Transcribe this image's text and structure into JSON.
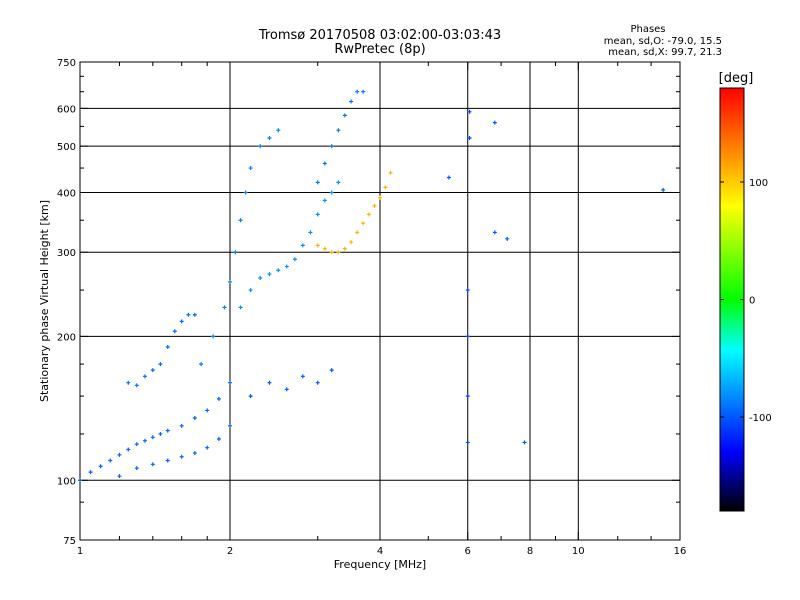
{
  "chart_data": {
    "type": "scatter",
    "title": "Tromsø 20170508 03:02:00-03:03:43",
    "subtitle": "RwPretec (8p)",
    "xlabel": "Frequency [MHz]",
    "ylabel": "Stationary phase Virtual Height [km]",
    "x_scale": "log",
    "y_scale": "log",
    "xlim": [
      1,
      16
    ],
    "ylim": [
      75,
      750
    ],
    "x_ticks": [
      1,
      2,
      4,
      6,
      8,
      10,
      16
    ],
    "x_tick_labels": [
      "1",
      "2",
      "4",
      "6",
      "8",
      "10",
      "16"
    ],
    "x_minor_ticks": [
      1.2,
      1.4,
      1.6,
      1.8,
      3,
      5,
      7,
      9,
      12,
      14
    ],
    "y_ticks": [
      75,
      100,
      200,
      300,
      400,
      500,
      600,
      750
    ],
    "y_tick_labels": [
      "75",
      "100",
      "200",
      "300",
      "400",
      "500",
      "600",
      "750"
    ],
    "y_minor_ticks": [
      90,
      125,
      150,
      175,
      250,
      350,
      450,
      550,
      650,
      700
    ],
    "grid_x": [
      2,
      4,
      6,
      8,
      10
    ],
    "grid_y": [
      100,
      200,
      300,
      400,
      500,
      600
    ],
    "legend": {
      "title": "Phases",
      "line1": "mean, sd,O: -79.0, 15.5",
      "line2": "mean, sd,X:  99.7, 21.3",
      "placement": "top-right"
    },
    "colorbar": {
      "label": "[deg]",
      "range": [
        -180,
        180
      ],
      "ticks": [
        100,
        0,
        -100
      ],
      "tick_labels": [
        "100",
        "0",
        "-100"
      ],
      "colors": [
        "#ff0000",
        "#ff8000",
        "#ffff00",
        "#00ff00",
        "#00ffff",
        "#0080ff",
        "#0000ff",
        "#000000"
      ]
    },
    "series": [
      {
        "trace": "O-lower",
        "phase_deg": -95,
        "x": [
          1.0,
          1.05,
          1.1,
          1.15,
          1.2,
          1.25,
          1.3,
          1.35,
          1.4,
          1.45,
          1.5,
          1.6,
          1.7,
          1.8,
          1.9,
          2.0
        ],
        "y": [
          100,
          104,
          107,
          110,
          113,
          116,
          119,
          121,
          123,
          125,
          127,
          130,
          135,
          140,
          148,
          160
        ]
      },
      {
        "trace": "O-lower-inner",
        "phase_deg": -95,
        "x": [
          1.2,
          1.3,
          1.4,
          1.5,
          1.6,
          1.7,
          1.8,
          1.9,
          2.0
        ],
        "y": [
          102,
          106,
          108,
          110,
          112,
          114,
          117,
          122,
          130
        ]
      },
      {
        "trace": "O-E-cusp",
        "phase_deg": -92,
        "x": [
          1.25,
          1.3,
          1.35,
          1.4,
          1.45,
          1.5,
          1.55,
          1.6,
          1.65,
          1.7
        ],
        "y": [
          160,
          158,
          165,
          170,
          175,
          190,
          205,
          215,
          222,
          222
        ]
      },
      {
        "trace": "O-F-rise",
        "phase_deg": -85,
        "x": [
          1.75,
          1.85,
          1.95,
          2.0,
          2.05,
          2.1,
          2.15,
          2.2,
          2.3,
          2.4,
          2.5
        ],
        "y": [
          175,
          200,
          230,
          260,
          300,
          350,
          400,
          450,
          500,
          520,
          540
        ]
      },
      {
        "trace": "O-F-main",
        "phase_deg": -80,
        "x": [
          2.1,
          2.2,
          2.3,
          2.4,
          2.5,
          2.6,
          2.7,
          2.8,
          2.9,
          3.0,
          3.1,
          3.2,
          3.3
        ],
        "y": [
          230,
          250,
          265,
          270,
          275,
          280,
          290,
          310,
          330,
          360,
          385,
          400,
          420
        ]
      },
      {
        "trace": "O-F-upper",
        "phase_deg": -88,
        "x": [
          3.0,
          3.1,
          3.2,
          3.3,
          3.4,
          3.5,
          3.6,
          3.7
        ],
        "y": [
          420,
          460,
          500,
          540,
          580,
          620,
          650,
          650
        ]
      },
      {
        "trace": "O-spread-low",
        "phase_deg": -100,
        "x": [
          2.2,
          2.4,
          2.6,
          2.8,
          3.0,
          3.2
        ],
        "y": [
          150,
          160,
          155,
          165,
          160,
          170
        ]
      },
      {
        "trace": "X-F",
        "phase_deg": 110,
        "x": [
          3.0,
          3.1,
          3.2,
          3.3,
          3.4,
          3.5,
          3.6,
          3.7,
          3.8,
          3.9,
          4.0,
          4.1,
          4.2
        ],
        "y": [
          310,
          305,
          300,
          300,
          305,
          315,
          330,
          345,
          360,
          375,
          390,
          410,
          440
        ]
      },
      {
        "trace": "noise-6MHz",
        "phase_deg": -105,
        "x": [
          6.0,
          6.0,
          6.0,
          6.0,
          6.05,
          6.05
        ],
        "y": [
          120,
          150,
          200,
          250,
          520,
          590
        ]
      },
      {
        "trace": "noise-scattered",
        "phase_deg": -100,
        "x": [
          6.8,
          6.8,
          7.2,
          7.8,
          14.8,
          5.5
        ],
        "y": [
          560,
          330,
          320,
          120,
          405,
          430
        ]
      }
    ]
  }
}
